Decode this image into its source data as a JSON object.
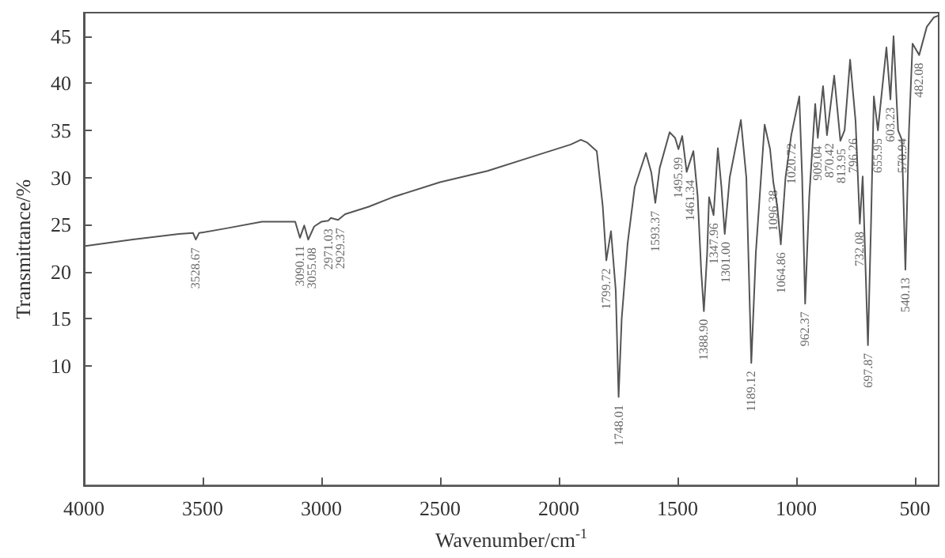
{
  "chart_data": {
    "type": "line",
    "xlabel": "Wavenumber/cm$^{-1}$",
    "ylabel": "Transmittance/%",
    "xlim": [
      4000,
      400
    ],
    "xticks": [
      4000,
      3500,
      3000,
      2500,
      2000,
      1500,
      1000,
      500
    ],
    "ylim": [
      -2.7,
      47.5
    ],
    "yticks": [
      10,
      15,
      20,
      25,
      30,
      35,
      40,
      45
    ],
    "grid": false,
    "marker": "none",
    "line_style": "solid",
    "x": [
      4000,
      3800,
      3600,
      3540,
      3528.67,
      3515,
      3400,
      3250,
      3110,
      3090.11,
      3072,
      3055.08,
      3030,
      3000,
      2971.03,
      2960,
      2929.37,
      2900,
      2800,
      2700,
      2500,
      2300,
      2100,
      1950,
      1907,
      1880,
      1840,
      1815,
      1799.72,
      1780,
      1760,
      1748.01,
      1735,
      1710,
      1680,
      1633,
      1610,
      1593.37,
      1575,
      1533,
      1510,
      1495.99,
      1480,
      1461.34,
      1433,
      1415,
      1400,
      1388.9,
      1375,
      1367,
      1347.96,
      1330,
      1315,
      1301.0,
      1280,
      1233,
      1210,
      1189.12,
      1170,
      1133,
      1110,
      1096.38,
      1080,
      1064.86,
      1045,
      1020.72,
      987,
      975,
      962.37,
      945,
      920,
      909.04,
      887,
      870.42,
      840,
      813.95,
      796.26,
      773,
      750,
      732.08,
      720,
      697.87,
      685,
      673,
      655.95,
      620,
      603.23,
      590,
      570.94,
      555,
      540.13,
      525,
      510,
      482.08,
      450,
      420,
      400
    ],
    "series": [
      {
        "color": "#555555",
        "values": [
          22.7,
          23.4,
          24.0,
          24.1,
          23.4,
          24.1,
          24.6,
          25.3,
          25.3,
          23.6,
          24.9,
          23.4,
          24.8,
          25.3,
          25.4,
          25.7,
          25.5,
          26.1,
          26.9,
          27.9,
          29.5,
          30.7,
          32.3,
          33.5,
          34.0,
          33.7,
          32.8,
          27,
          21.2,
          24.3,
          18,
          6.7,
          15,
          23,
          29,
          32.6,
          30.5,
          27.3,
          31,
          34.8,
          34.2,
          33.0,
          34.4,
          30.6,
          32.8,
          28,
          20,
          15.8,
          22,
          27.9,
          26.0,
          33.1,
          29,
          24.0,
          30,
          36.1,
          30,
          10.3,
          22,
          35.6,
          33,
          29.5,
          27,
          22.9,
          30,
          34.5,
          38.6,
          30,
          16.6,
          28,
          37.8,
          34.2,
          39.7,
          34.5,
          40.8,
          33.9,
          35.0,
          42.5,
          36,
          25.1,
          30.1,
          12.2,
          25,
          38.6,
          35.0,
          43.8,
          38.3,
          45.0,
          35.0,
          34,
          20.2,
          35,
          44.2,
          43.0,
          46,
          47,
          47.2
        ]
      }
    ],
    "annotations": [
      {
        "text": "3528.67",
        "x": 3528.67,
        "y": 23.4
      },
      {
        "text": "3090.11",
        "x": 3090.11,
        "y": 23.6
      },
      {
        "text": "3055.08",
        "x": 3055.08,
        "y": 23.4
      },
      {
        "text": "2971.03",
        "x": 2971.03,
        "y": 25.4
      },
      {
        "text": "2929.37",
        "x": 2929.37,
        "y": 25.5
      },
      {
        "text": "1799.72",
        "x": 1799.72,
        "y": 21.2
      },
      {
        "text": "1748.01",
        "x": 1748.01,
        "y": 6.7
      },
      {
        "text": "1593.37",
        "x": 1593.37,
        "y": 27.3
      },
      {
        "text": "1495.99",
        "x": 1495.99,
        "y": 33.0
      },
      {
        "text": "1461.34",
        "x": 1461.34,
        "y": 30.6
      },
      {
        "text": "1388.90",
        "x": 1388.9,
        "y": 15.8
      },
      {
        "text": "1347.96",
        "x": 1347.96,
        "y": 26.0
      },
      {
        "text": "1301.00",
        "x": 1301.0,
        "y": 24.0
      },
      {
        "text": "1189.12",
        "x": 1189.12,
        "y": 10.3
      },
      {
        "text": "1096.38",
        "x": 1096.38,
        "y": 29.5
      },
      {
        "text": "1064.86",
        "x": 1064.86,
        "y": 22.9
      },
      {
        "text": "1020.72",
        "x": 1020.72,
        "y": 34.5
      },
      {
        "text": "962.37",
        "x": 962.37,
        "y": 16.6
      },
      {
        "text": "909.04",
        "x": 909.04,
        "y": 34.2
      },
      {
        "text": "870.42",
        "x": 870.42,
        "y": 34.5
      },
      {
        "text": "813.95",
        "x": 813.95,
        "y": 33.9
      },
      {
        "text": "796.26",
        "x": 796.26,
        "y": 35.0
      },
      {
        "text": "732.08",
        "x": 732.08,
        "y": 25.1
      },
      {
        "text": "697.87",
        "x": 697.87,
        "y": 12.2
      },
      {
        "text": "655.95",
        "x": 655.95,
        "y": 35.0
      },
      {
        "text": "603.23",
        "x": 603.23,
        "y": 38.3
      },
      {
        "text": "570.94",
        "x": 570.94,
        "y": 35.0
      },
      {
        "text": "540.13",
        "x": 540.13,
        "y": 20.2
      },
      {
        "text": "482.08",
        "x": 482.08,
        "y": 43.0
      }
    ]
  }
}
